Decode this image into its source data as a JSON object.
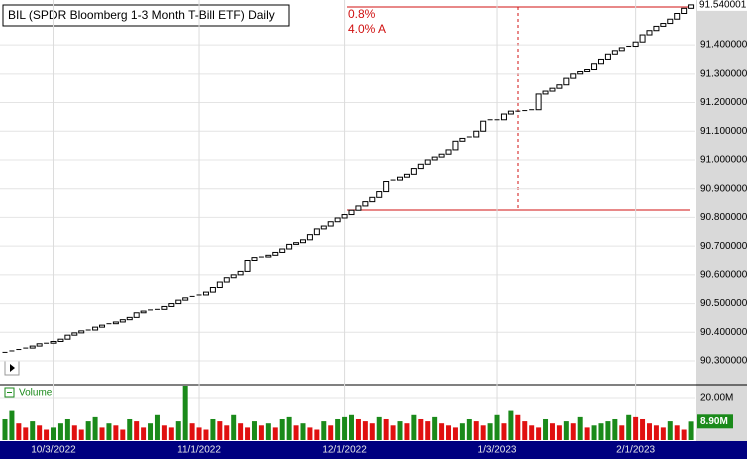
{
  "chart_data": {
    "type": "candlestick",
    "title": "BIL (SPDR Bloomberg 1-3 Month T-Bill ETF) Daily",
    "annotations": [
      "0.8%",
      "4.0% A"
    ],
    "categories": [
      null,
      null,
      null,
      null,
      null,
      null,
      null,
      "10/3/2022",
      null,
      null,
      null,
      null,
      null,
      null,
      null,
      null,
      null,
      null,
      null,
      null,
      null,
      null,
      null,
      null,
      null,
      null,
      null,
      null,
      "11/1/2022",
      null,
      null,
      null,
      null,
      null,
      null,
      null,
      null,
      null,
      null,
      null,
      null,
      null,
      null,
      null,
      null,
      null,
      null,
      null,
      null,
      "12/1/2022",
      null,
      null,
      null,
      null,
      null,
      null,
      null,
      null,
      null,
      null,
      null,
      null,
      null,
      null,
      null,
      null,
      null,
      null,
      null,
      null,
      null,
      "1/3/2023",
      null,
      null,
      null,
      null,
      null,
      null,
      null,
      null,
      null,
      null,
      null,
      null,
      null,
      null,
      null,
      null,
      null,
      null,
      null,
      "2/1/2023",
      null,
      null,
      null,
      null,
      null,
      null,
      null,
      null
    ],
    "open": [
      90.325,
      90.33,
      90.335,
      90.34,
      90.345,
      90.352,
      90.36,
      90.362,
      90.368,
      90.376,
      90.39,
      90.398,
      90.405,
      90.408,
      90.418,
      90.425,
      90.43,
      90.436,
      90.444,
      90.452,
      90.468,
      90.474,
      90.478,
      90.48,
      90.49,
      90.5,
      90.512,
      90.52,
      90.525,
      90.53,
      90.54,
      90.556,
      90.575,
      90.59,
      90.6,
      90.612,
      90.65,
      90.66,
      90.662,
      90.668,
      90.678,
      90.69,
      90.706,
      90.712,
      90.722,
      90.74,
      90.76,
      90.77,
      90.785,
      90.798,
      90.81,
      90.825,
      90.84,
      90.855,
      90.87,
      90.89,
      90.925,
      90.93,
      90.94,
      90.95,
      90.97,
      90.985,
      91.0,
      91.01,
      91.02,
      91.035,
      91.065,
      91.075,
      91.08,
      91.1,
      91.135,
      91.14,
      91.14,
      91.16,
      91.17,
      91.17,
      91.172,
      91.175,
      91.23,
      91.24,
      91.25,
      91.262,
      91.285,
      91.3,
      91.308,
      91.315,
      91.335,
      91.35,
      91.368,
      91.38,
      91.39,
      91.395,
      91.41,
      91.435,
      91.45,
      91.465,
      91.475,
      91.49,
      91.51,
      91.528
    ],
    "close": [
      90.33,
      90.335,
      90.34,
      90.345,
      90.352,
      90.36,
      90.362,
      90.368,
      90.376,
      90.39,
      90.398,
      90.405,
      90.408,
      90.418,
      90.425,
      90.43,
      90.436,
      90.444,
      90.452,
      90.468,
      90.474,
      90.478,
      90.48,
      90.49,
      90.5,
      90.512,
      90.52,
      90.525,
      90.53,
      90.54,
      90.556,
      90.575,
      90.59,
      90.6,
      90.612,
      90.65,
      90.66,
      90.662,
      90.668,
      90.678,
      90.69,
      90.706,
      90.712,
      90.722,
      90.74,
      90.76,
      90.77,
      90.785,
      90.798,
      90.81,
      90.825,
      90.84,
      90.855,
      90.87,
      90.89,
      90.925,
      90.93,
      90.94,
      90.95,
      90.97,
      90.985,
      91.0,
      91.01,
      91.02,
      91.035,
      91.065,
      91.075,
      91.08,
      91.1,
      91.135,
      91.14,
      91.14,
      91.16,
      91.17,
      91.17,
      91.172,
      91.175,
      91.23,
      91.24,
      91.25,
      91.262,
      91.285,
      91.3,
      91.308,
      91.315,
      91.335,
      91.35,
      91.368,
      91.38,
      91.39,
      91.395,
      91.41,
      91.435,
      91.45,
      91.465,
      91.475,
      91.49,
      91.51,
      91.528,
      91.54
    ],
    "last_price_label": {
      "value": 91.540001,
      "label": "91.540001"
    },
    "ylim": [
      90.22,
      91.557
    ],
    "yticks": [
      {
        "value": 90.3,
        "label": "90.300000"
      },
      {
        "value": 90.4,
        "label": "90.400000"
      },
      {
        "value": 90.5,
        "label": "90.500000"
      },
      {
        "value": 90.6,
        "label": "90.600000"
      },
      {
        "value": 90.7,
        "label": "90.700000"
      },
      {
        "value": 90.8,
        "label": "90.800000"
      },
      {
        "value": 90.9,
        "label": "90.900000"
      },
      {
        "value": 91.0,
        "label": "91.000000"
      },
      {
        "value": 91.1,
        "label": "91.100000"
      },
      {
        "value": 91.2,
        "label": "91.200000"
      },
      {
        "value": 91.3,
        "label": "91.300000"
      },
      {
        "value": 91.4,
        "label": "91.400000"
      }
    ],
    "candle_color": "#000000",
    "grid": true,
    "volume": {
      "name": "Volume",
      "values": [
        10,
        14,
        8,
        6,
        9,
        7,
        5,
        6,
        8,
        10,
        7,
        5,
        9,
        11,
        6,
        8,
        7,
        5,
        10,
        9,
        6,
        8,
        12,
        7,
        6,
        9,
        25.7,
        8,
        6,
        5,
        10,
        9,
        7,
        12,
        8,
        6,
        9,
        7,
        8,
        6,
        10,
        11,
        7,
        8,
        6,
        5,
        9,
        7,
        10,
        11,
        12,
        10,
        9,
        8,
        11,
        10,
        7,
        9,
        8,
        12,
        10,
        9,
        11,
        8,
        7,
        6,
        8,
        10,
        9,
        7,
        8,
        12,
        8,
        14,
        12,
        9,
        7,
        6,
        10,
        8,
        7,
        9,
        8,
        11,
        6,
        7,
        8,
        9,
        10,
        7,
        12,
        11,
        10,
        8,
        7,
        6,
        9,
        7,
        5,
        8.9
      ],
      "last_value_label": {
        "value": 8.9,
        "label": "8.90M"
      },
      "ylim": [
        0,
        25.7
      ],
      "yticks": [
        {
          "value": 20,
          "label": "20.00M"
        }
      ],
      "up_color": "#1a8a1a",
      "down_color": "#e01010"
    }
  }
}
